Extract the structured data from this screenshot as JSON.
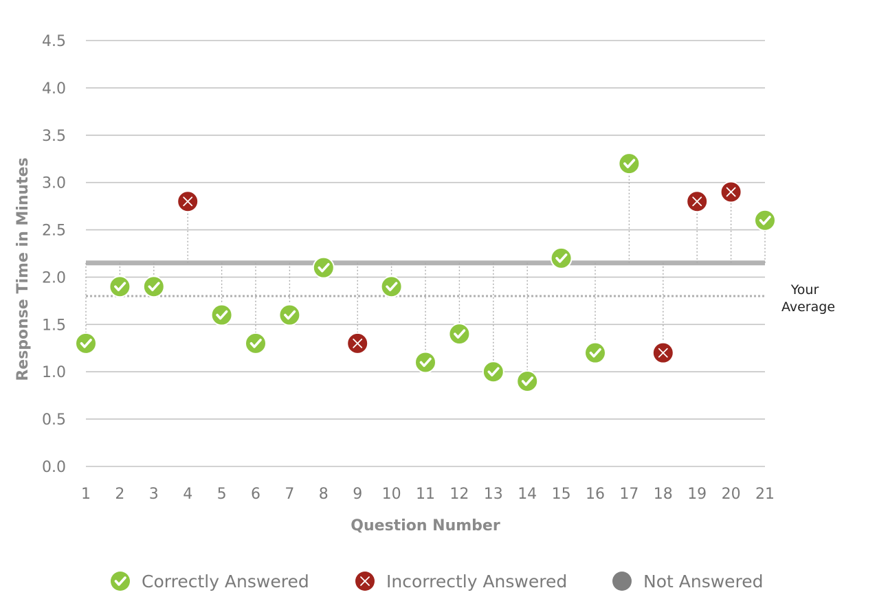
{
  "chart_data": {
    "type": "scatter",
    "title": "",
    "xlabel": "Question Number",
    "ylabel": "Response Time in Minutes",
    "categories": [
      "1",
      "2",
      "3",
      "4",
      "5",
      "6",
      "7",
      "8",
      "9",
      "10",
      "11",
      "12",
      "13",
      "14",
      "15",
      "16",
      "17",
      "18",
      "19",
      "20",
      "21"
    ],
    "values": [
      1.3,
      1.9,
      1.9,
      2.8,
      1.6,
      1.3,
      1.6,
      2.1,
      1.3,
      1.9,
      1.1,
      1.4,
      1.0,
      0.9,
      2.2,
      1.2,
      3.2,
      1.2,
      2.8,
      2.9,
      2.6
    ],
    "status": [
      "correct",
      "correct",
      "correct",
      "incorrect",
      "correct",
      "correct",
      "correct",
      "correct",
      "incorrect",
      "correct",
      "correct",
      "correct",
      "correct",
      "correct",
      "correct",
      "correct",
      "correct",
      "incorrect",
      "incorrect",
      "incorrect",
      "correct"
    ],
    "ylim": [
      0,
      4.5
    ],
    "yticks": [
      "0.0",
      "0.5",
      "1.0",
      "1.5",
      "2.0",
      "2.5",
      "3.0",
      "3.5",
      "4.0",
      "4.5"
    ],
    "reference_line": 2.15,
    "average": {
      "value": 1.8,
      "label_line1": "Your",
      "label_line2": "Average"
    },
    "grid": true,
    "legend_position": "bottom",
    "legend": [
      {
        "key": "correct",
        "label": "Correctly Answered"
      },
      {
        "key": "incorrect",
        "label": "Incorrectly Answered"
      },
      {
        "key": "not_answered",
        "label": "Not Answered"
      }
    ],
    "colors": {
      "correct": "#8dc63f",
      "incorrect": "#a0231c",
      "not_answered": "#7f7f7f",
      "reference": "#b3b3b3",
      "average": "#b0b0b0",
      "grid": "#c4c4c4"
    }
  }
}
